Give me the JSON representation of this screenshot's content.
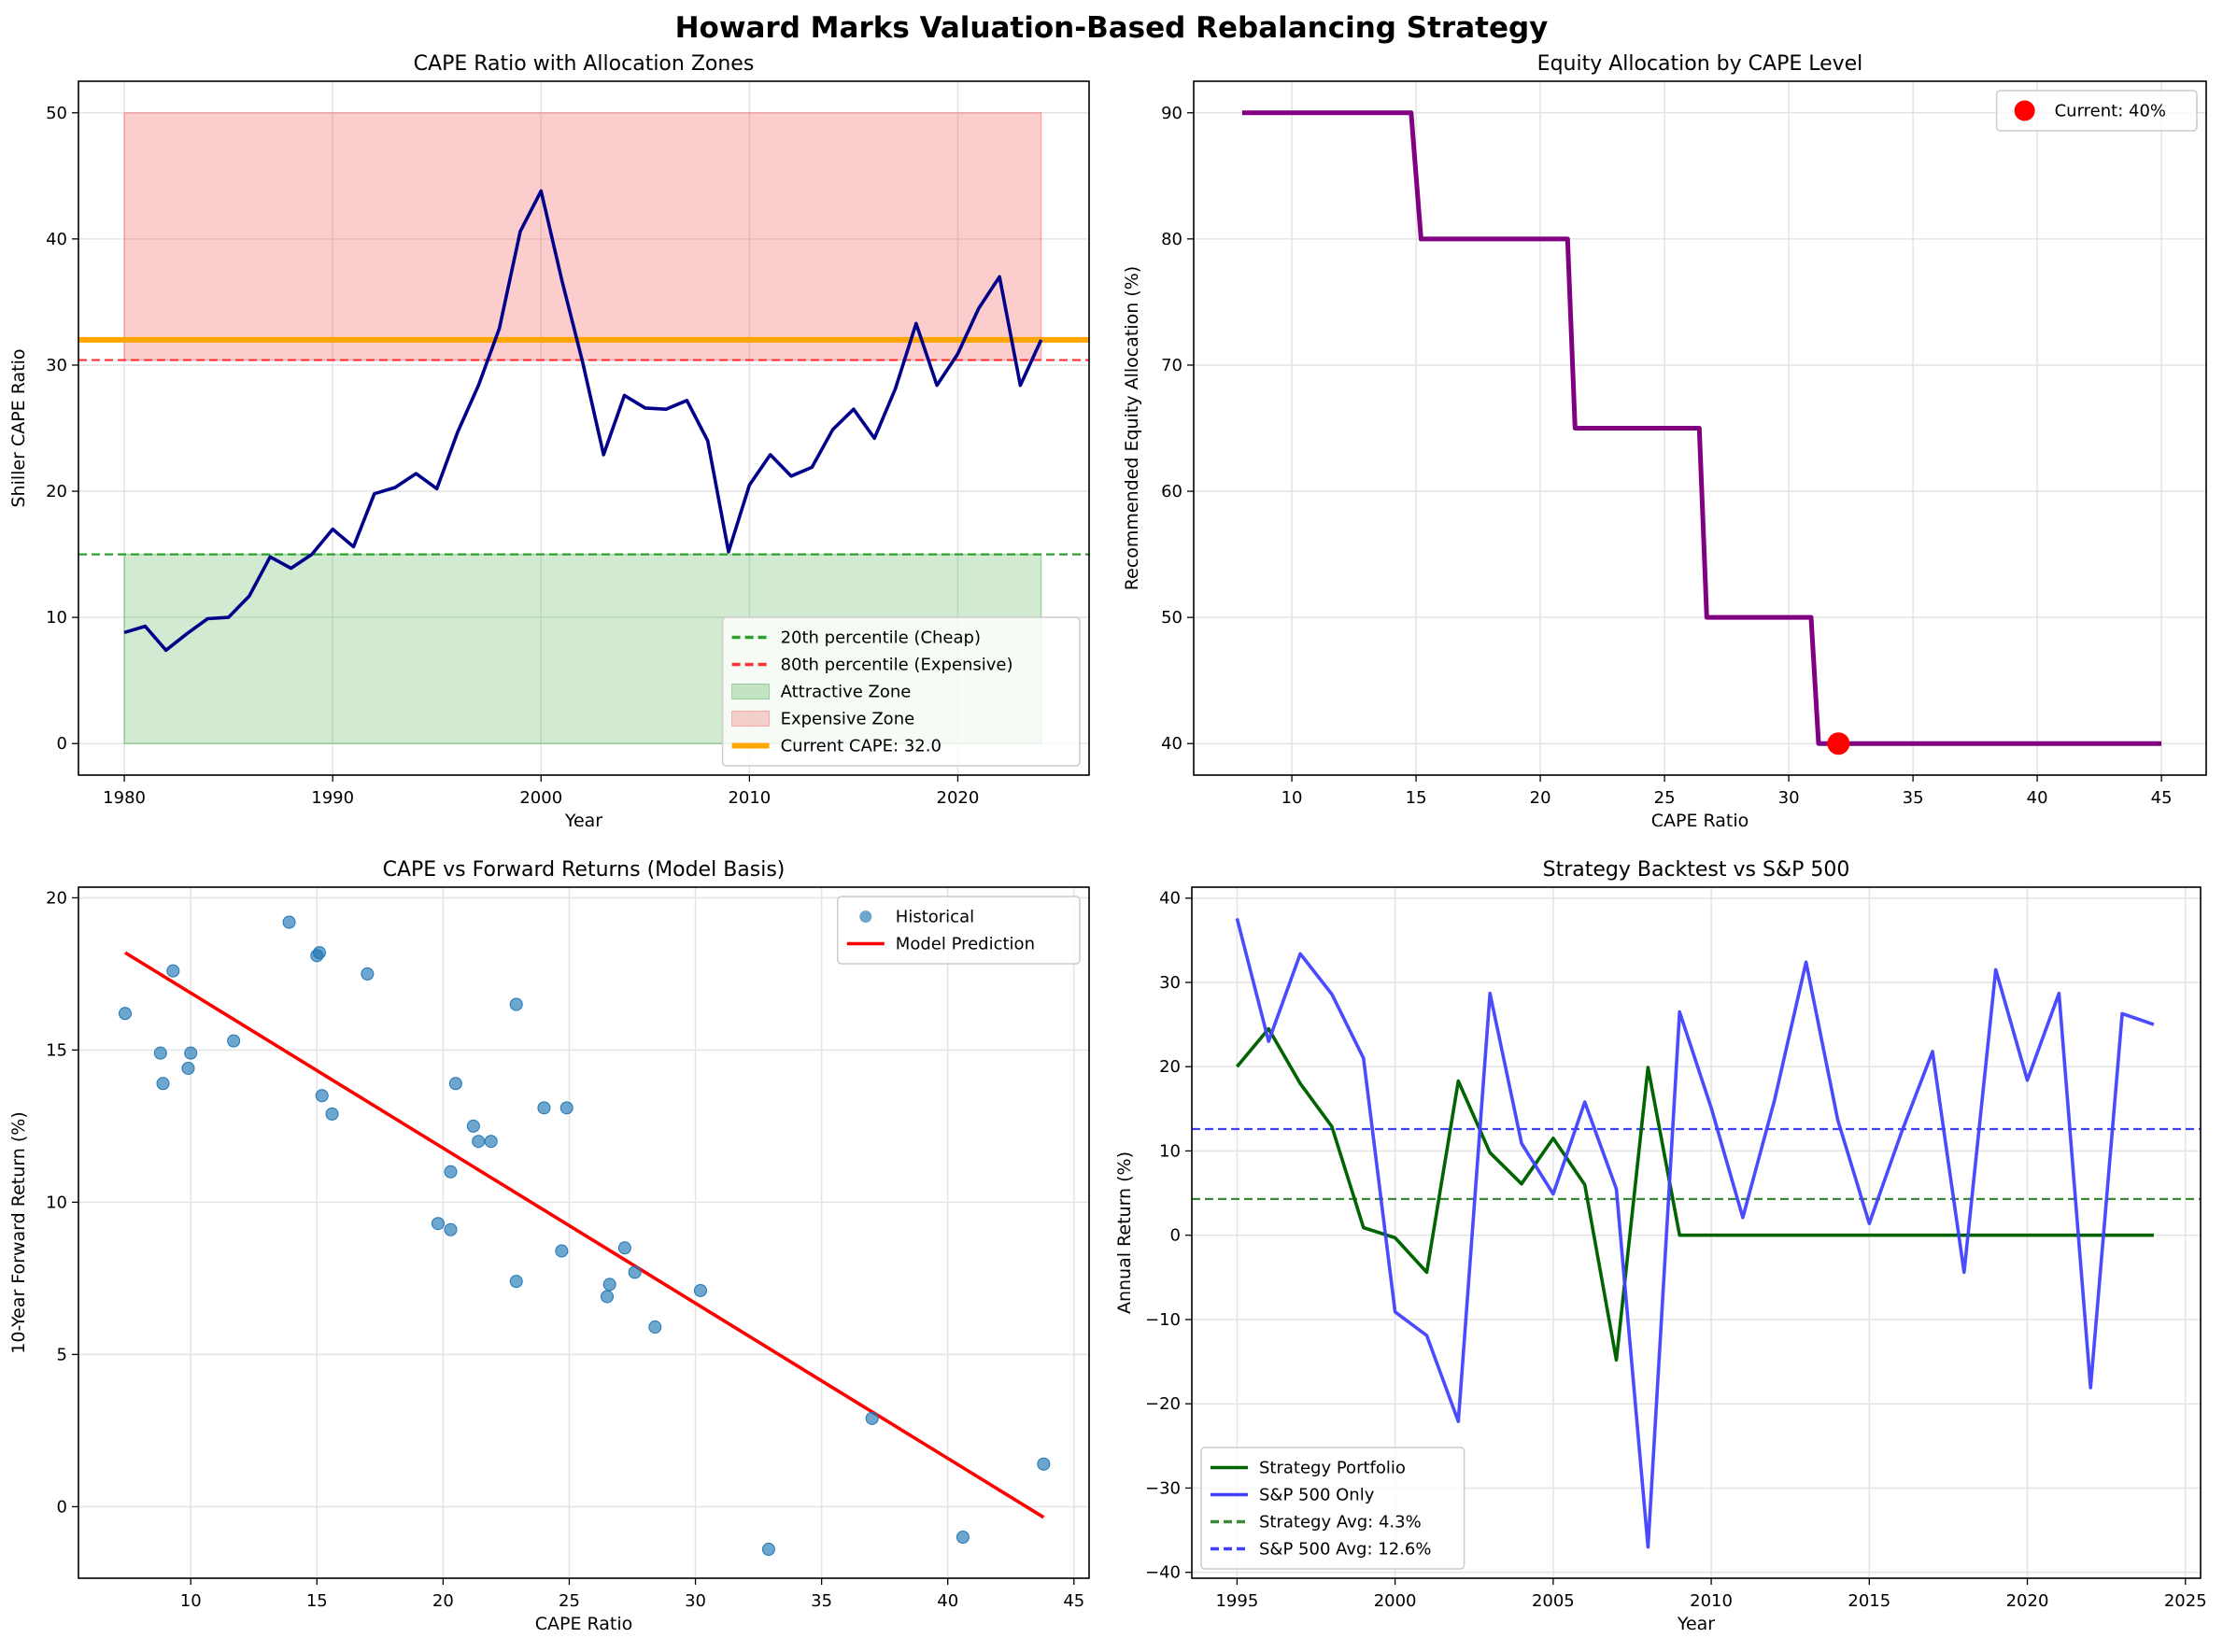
{
  "suptitle": "Howard Marks Valuation-Based Rebalancing Strategy",
  "chart_data": [
    {
      "type": "line",
      "title": "CAPE Ratio with Allocation Zones",
      "xlabel": "Year",
      "ylabel": "Shiller CAPE Ratio",
      "xlim": [
        1977.8,
        2026.3
      ],
      "ylim": [
        -2.5,
        52.5
      ],
      "xticks": [
        1980,
        1990,
        2000,
        2010,
        2020
      ],
      "yticks": [
        0,
        10,
        20,
        30,
        40,
        50
      ],
      "grid": true,
      "legend_position": "lower-right",
      "fills": [
        {
          "name": "Attractive Zone",
          "x": [
            1980,
            2024
          ],
          "y": [
            0,
            15
          ],
          "color": "#2ca02c",
          "opacity": 0.22
        },
        {
          "name": "Expensive Zone",
          "x": [
            1980,
            2024
          ],
          "y": [
            30.4,
            50
          ],
          "color": "#f44a4a",
          "opacity": 0.28
        }
      ],
      "hlines": [
        {
          "name": "20th percentile (Cheap)",
          "y": 15.0,
          "color": "#2ca02c",
          "dashed": true,
          "width": 2.2
        },
        {
          "name": "80th percentile (Expensive)",
          "y": 30.4,
          "color": "#ff3333",
          "dashed": true,
          "width": 2.2
        },
        {
          "name": "Current CAPE: 32.0",
          "y": 32.0,
          "color": "#ffa500",
          "dashed": false,
          "width": 6
        }
      ],
      "series": [
        {
          "color": "#00008b",
          "x": [
            1980,
            1981,
            1982,
            1983,
            1984,
            1985,
            1986,
            1987,
            1988,
            1989,
            1990,
            1991,
            1992,
            1993,
            1994,
            1995,
            1996,
            1997,
            1998,
            1999,
            2000,
            2001,
            2002,
            2003,
            2004,
            2005,
            2006,
            2007,
            2008,
            2009,
            2010,
            2011,
            2012,
            2013,
            2014,
            2015,
            2016,
            2017,
            2018,
            2019,
            2020,
            2021,
            2022,
            2023,
            2024
          ],
          "y": [
            8.8,
            9.3,
            7.4,
            8.7,
            9.9,
            10.0,
            11.7,
            14.8,
            13.9,
            15.0,
            17.0,
            15.6,
            19.8,
            20.3,
            21.4,
            20.2,
            24.7,
            28.4,
            32.9,
            40.6,
            43.8,
            36.7,
            30.2,
            22.9,
            27.6,
            26.6,
            26.5,
            27.2,
            24.0,
            15.2,
            20.5,
            22.9,
            21.2,
            21.9,
            24.9,
            26.5,
            24.2,
            28.1,
            33.3,
            28.4,
            30.9,
            34.5,
            37.0,
            28.4,
            32.0
          ]
        }
      ],
      "legend": [
        {
          "label": "20th percentile (Cheap)",
          "kind": "dash",
          "color": "#2ca02c"
        },
        {
          "label": "80th percentile (Expensive)",
          "kind": "dash",
          "color": "#ff3333"
        },
        {
          "label": "Attractive Zone",
          "kind": "patch",
          "color": "#2ca02c"
        },
        {
          "label": "Expensive Zone",
          "kind": "patch",
          "color": "#f44a4a"
        },
        {
          "label": "Current CAPE: 32.0",
          "kind": "line",
          "color": "#ffa500"
        }
      ]
    },
    {
      "type": "line",
      "title": "Equity Allocation by CAPE Level",
      "xlabel": "CAPE Ratio",
      "ylabel": "Recommended Equity Allocation (%)",
      "xlim": [
        6.05,
        46.8
      ],
      "ylim": [
        37.5,
        92.5
      ],
      "xticks": [
        10,
        15,
        20,
        25,
        30,
        35,
        40,
        45
      ],
      "yticks": [
        40,
        50,
        60,
        70,
        80,
        90
      ],
      "grid": true,
      "legend_position": "upper-right",
      "series": [
        {
          "color": "#800080",
          "x": [
            8,
            14.8,
            15.2,
            21.1,
            21.4,
            26.4,
            26.7,
            30.9,
            31.2,
            45
          ],
          "y": [
            90,
            90,
            80,
            80,
            65,
            65,
            50,
            50,
            40,
            40
          ]
        }
      ],
      "markers": [
        {
          "name": "Current: 40%",
          "x": 32,
          "y": 40,
          "color": "#ff0000"
        }
      ],
      "legend": [
        {
          "label": "Current: 40%",
          "kind": "dot",
          "color": "#ff0000"
        }
      ]
    },
    {
      "type": "scatter",
      "title": "CAPE vs Forward Returns (Model Basis)",
      "xlabel": "CAPE Ratio",
      "ylabel": "10-Year Forward Return (%)",
      "xlim": [
        5.55,
        45.6
      ],
      "ylim": [
        -2.35,
        20.35
      ],
      "xticks": [
        10,
        15,
        20,
        25,
        30,
        35,
        40,
        45
      ],
      "yticks": [
        0,
        5,
        10,
        15,
        20
      ],
      "grid": true,
      "legend_position": "upper-right",
      "points": {
        "name": "Historical",
        "color": "#1f77b4",
        "x": [
          7.4,
          8.8,
          8.9,
          9.3,
          9.9,
          10.0,
          11.7,
          13.9,
          15.0,
          15.1,
          15.2,
          15.6,
          17.0,
          19.8,
          20.3,
          20.3,
          20.5,
          21.2,
          21.4,
          21.9,
          22.9,
          22.9,
          24.0,
          24.7,
          24.9,
          26.5,
          26.6,
          27.2,
          27.6,
          28.4,
          30.2,
          32.9,
          37.0,
          40.6,
          43.8
        ],
        "y": [
          16.2,
          14.9,
          13.9,
          17.6,
          14.4,
          14.9,
          15.3,
          19.2,
          18.1,
          18.2,
          13.5,
          12.9,
          17.5,
          9.3,
          9.1,
          11.0,
          13.9,
          12.5,
          12.0,
          12.0,
          16.5,
          7.4,
          13.1,
          8.4,
          13.1,
          6.9,
          7.3,
          8.5,
          7.7,
          5.9,
          7.1,
          -1.4,
          2.9,
          -1.0,
          1.4
        ]
      },
      "series": [
        {
          "name": "Model Prediction",
          "color": "#ff0000",
          "x": [
            7.4,
            43.8
          ],
          "y": [
            18.2,
            -0.35
          ]
        }
      ],
      "legend": [
        {
          "label": "Historical",
          "kind": "scatter",
          "color": "#1f77b4"
        },
        {
          "label": "Model Prediction",
          "kind": "line",
          "color": "#ff0000"
        }
      ]
    },
    {
      "type": "line",
      "title": "Strategy Backtest vs S&P 500",
      "xlabel": "Year",
      "ylabel": "Annual Return (%)",
      "xlim": [
        1993.57,
        2025.48
      ],
      "ylim": [
        -40.7,
        41.3
      ],
      "xticks": [
        1995,
        2000,
        2005,
        2010,
        2015,
        2020,
        2025
      ],
      "yticks": [
        -40,
        -30,
        -20,
        -10,
        0,
        10,
        20,
        30,
        40
      ],
      "grid": true,
      "legend_position": "lower-left",
      "series": [
        {
          "name": "Strategy Portfolio",
          "color": "#006400",
          "x": [
            1995,
            1996,
            1997,
            1998,
            1999,
            2000,
            2001,
            2002,
            2003,
            2004,
            2005,
            2006,
            2007,
            2008,
            2009,
            2010,
            2011,
            2012,
            2013,
            2014,
            2015,
            2016,
            2017,
            2018,
            2019,
            2020,
            2021,
            2022,
            2023,
            2024
          ],
          "y": [
            20.0,
            24.5,
            18.0,
            12.9,
            0.9,
            -0.3,
            -4.4,
            18.3,
            9.8,
            6.1,
            11.5,
            6.0,
            -14.8,
            19.9,
            0,
            0,
            0,
            0,
            0,
            0,
            0,
            0,
            0,
            0,
            0,
            0,
            0,
            0,
            0,
            0
          ]
        },
        {
          "name": "S&P 500 Only",
          "color": "#4040ff",
          "x": [
            1995,
            1996,
            1997,
            1998,
            1999,
            2000,
            2001,
            2002,
            2003,
            2004,
            2005,
            2006,
            2007,
            2008,
            2009,
            2010,
            2011,
            2012,
            2013,
            2014,
            2015,
            2016,
            2017,
            2018,
            2019,
            2020,
            2021,
            2022,
            2023,
            2024
          ],
          "y": [
            37.6,
            23.0,
            33.4,
            28.6,
            21.0,
            -9.1,
            -11.9,
            -22.1,
            28.7,
            10.9,
            4.9,
            15.8,
            5.5,
            -37.0,
            26.5,
            15.1,
            2.1,
            16.0,
            32.4,
            13.7,
            1.4,
            12.0,
            21.8,
            -4.4,
            31.5,
            18.4,
            28.7,
            -18.1,
            26.3,
            25.0
          ]
        }
      ],
      "hlines": [
        {
          "name": "Strategy Avg: 4.3%",
          "y": 4.3,
          "color": "#3a8a3a",
          "dashed": true,
          "width": 2.2
        },
        {
          "name": "S&P 500 Avg: 12.6%",
          "y": 12.6,
          "color": "#4040ff",
          "dashed": true,
          "width": 2.2
        }
      ],
      "legend": [
        {
          "label": "Strategy Portfolio",
          "kind": "line",
          "color": "#006400"
        },
        {
          "label": "S&P 500 Only",
          "kind": "line",
          "color": "#4040ff"
        },
        {
          "label": "Strategy Avg: 4.3%",
          "kind": "dash",
          "color": "#3a8a3a"
        },
        {
          "label": "S&P 500 Avg: 12.6%",
          "kind": "dash",
          "color": "#4040ff"
        }
      ]
    }
  ]
}
